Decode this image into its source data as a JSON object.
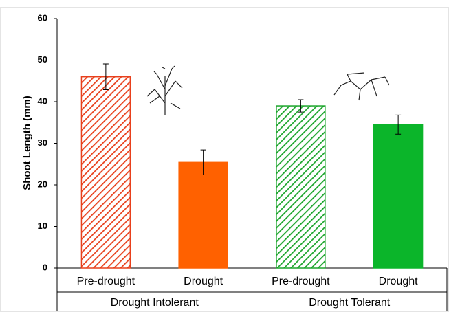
{
  "chart_data": {
    "type": "bar",
    "y_label": "Shoot Length (mm)",
    "ylim": [
      0,
      60
    ],
    "yticks": [
      0,
      10,
      20,
      30,
      40,
      50,
      60
    ],
    "groups": [
      {
        "name": "Drought Intolerant",
        "categories": [
          "Pre-drought",
          "Drought"
        ],
        "values": [
          46,
          25.4
        ],
        "errors": [
          3.1,
          3
        ],
        "colors": [
          "#e8401c",
          "#ff6100"
        ],
        "hatched": [
          true,
          false
        ]
      },
      {
        "name": "Drought Tolerant",
        "categories": [
          "Pre-drought",
          "Drought"
        ],
        "values": [
          39,
          34.5
        ],
        "errors": [
          1.5,
          2.3
        ],
        "colors": [
          "#1ca52c",
          "#0bb52a"
        ],
        "hatched": [
          true,
          false
        ]
      }
    ]
  }
}
